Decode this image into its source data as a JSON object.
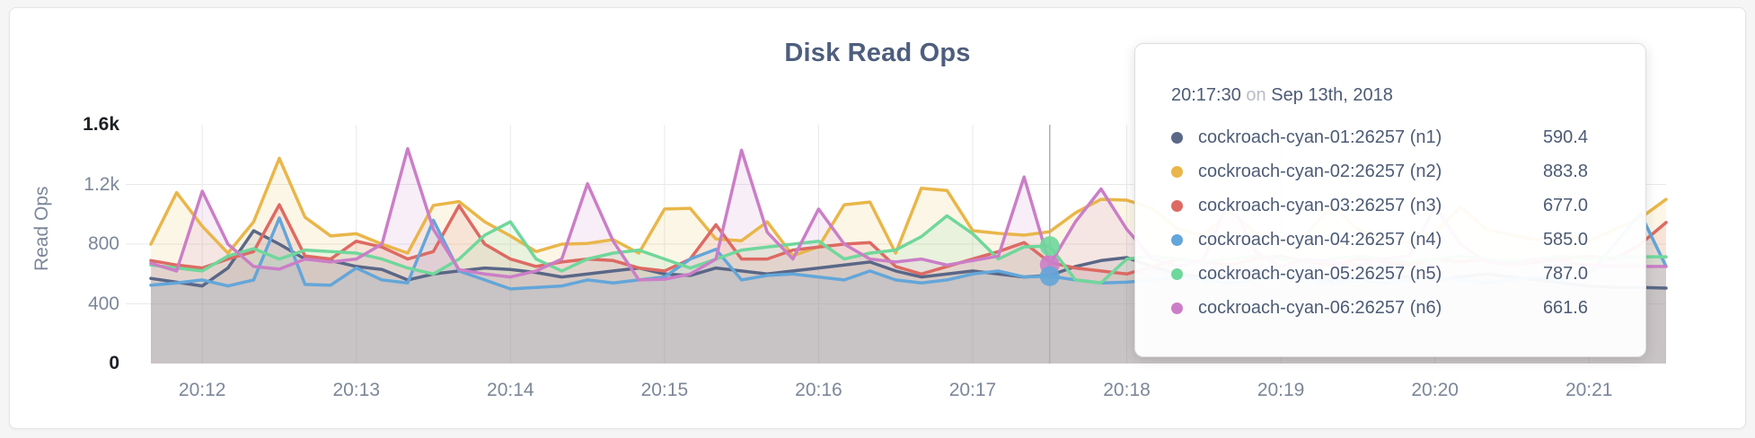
{
  "page": {
    "background_color": "#f5f5f6",
    "card_background": "#ffffff"
  },
  "chart": {
    "title": "Disk Read Ops",
    "y_axis_label": "Read Ops",
    "gridline_color": "#e9e9e9",
    "crosshair_color": "#b0b0b0"
  },
  "tooltip": {
    "time": "20:17:30",
    "connector": "on",
    "date": "Sep 13th, 2018",
    "rows": [
      {
        "name": "cockroach-cyan-01:26257 (n1)",
        "value": "590.4",
        "color": "#5a6787"
      },
      {
        "name": "cockroach-cyan-02:26257 (n2)",
        "value": "883.8",
        "color": "#e9b649"
      },
      {
        "name": "cockroach-cyan-03:26257 (n3)",
        "value": "677.0",
        "color": "#dd6a63"
      },
      {
        "name": "cockroach-cyan-04:26257 (n4)",
        "value": "585.0",
        "color": "#63a6d9"
      },
      {
        "name": "cockroach-cyan-05:26257 (n5)",
        "value": "787.0",
        "color": "#70d79b"
      },
      {
        "name": "cockroach-cyan-06:26257 (n6)",
        "value": "661.6",
        "color": "#cb7ec7"
      }
    ]
  },
  "chart_data": {
    "type": "line",
    "title": "Disk Read Ops",
    "ylabel": "Read Ops",
    "ylim": [
      0,
      1600
    ],
    "y_ticks": [
      {
        "label": "0",
        "value": 0,
        "strong": true
      },
      {
        "label": "400",
        "value": 400,
        "strong": false
      },
      {
        "label": "800",
        "value": 800,
        "strong": false
      },
      {
        "label": "1.2k",
        "value": 1200,
        "strong": false
      },
      {
        "label": "1.6k",
        "value": 1600,
        "strong": true
      }
    ],
    "y_gridline_values": [
      400,
      800,
      1200
    ],
    "x_start_time": "20:11:40",
    "x_interval_seconds": 10,
    "x_ticks": [
      {
        "label": "20:12",
        "index": 2
      },
      {
        "label": "20:13",
        "index": 8
      },
      {
        "label": "20:14",
        "index": 14
      },
      {
        "label": "20:15",
        "index": 20
      },
      {
        "label": "20:16",
        "index": 26
      },
      {
        "label": "20:17",
        "index": 32
      },
      {
        "label": "20:18",
        "index": 38
      },
      {
        "label": "20:19",
        "index": 44
      },
      {
        "label": "20:20",
        "index": 50
      },
      {
        "label": "20:21",
        "index": 56
      }
    ],
    "hover": {
      "index": 35,
      "time": "20:17:30",
      "crosshair": true,
      "dot_series_shorts": [
        "n6",
        "n5",
        "n4"
      ]
    },
    "series": [
      {
        "name": "cockroach-cyan-01:26257 (n1)",
        "short": "n1",
        "color": "#5a6787",
        "values": [
          570,
          545,
          520,
          640,
          890,
          800,
          700,
          690,
          650,
          630,
          560,
          600,
          620,
          640,
          630,
          610,
          580,
          600,
          620,
          640,
          600,
          590,
          640,
          620,
          600,
          620,
          640,
          660,
          680,
          620,
          580,
          600,
          620,
          600,
          580,
          590.4,
          650,
          690,
          710,
          650,
          600,
          580,
          600,
          620,
          600,
          580,
          560,
          580,
          600,
          580,
          560,
          580,
          600,
          580,
          560,
          540,
          520,
          510,
          510,
          505
        ]
      },
      {
        "name": "cockroach-cyan-02:26257 (n2)",
        "short": "n2",
        "color": "#e9b649",
        "values": [
          800,
          1145,
          920,
          740,
          950,
          1375,
          980,
          855,
          870,
          800,
          740,
          1060,
          1085,
          950,
          855,
          750,
          800,
          805,
          830,
          740,
          1035,
          1040,
          835,
          823,
          950,
          722,
          782,
          1064,
          1082,
          740,
          1175,
          1160,
          890,
          872,
          860,
          883.8,
          1010,
          1100,
          1095,
          1040,
          900,
          860,
          1020,
          880,
          820,
          870,
          1060,
          900,
          830,
          810,
          880,
          1050,
          900,
          860,
          830,
          870,
          820,
          900,
          975,
          1100
        ]
      },
      {
        "name": "cockroach-cyan-03:26257 (n3)",
        "short": "n3",
        "color": "#dd6a63",
        "values": [
          690,
          660,
          640,
          700,
          750,
          1064,
          720,
          700,
          820,
          780,
          700,
          750,
          1058,
          800,
          700,
          650,
          680,
          700,
          690,
          640,
          620,
          700,
          930,
          700,
          700,
          760,
          780,
          800,
          810,
          650,
          600,
          650,
          700,
          750,
          810,
          677,
          640,
          620,
          600,
          650,
          700,
          680,
          660,
          700,
          720,
          680,
          660,
          700,
          680,
          660,
          700,
          680,
          700,
          660,
          680,
          700,
          720,
          700,
          800,
          945
        ]
      },
      {
        "name": "cockroach-cyan-04:26257 (n4)",
        "short": "n4",
        "color": "#63a6d9",
        "values": [
          525,
          540,
          560,
          520,
          560,
          975,
          530,
          525,
          640,
          560,
          540,
          960,
          620,
          560,
          500,
          510,
          520,
          560,
          540,
          560,
          580,
          700,
          765,
          560,
          590,
          600,
          580,
          560,
          620,
          560,
          540,
          560,
          600,
          620,
          580,
          585,
          560,
          540,
          545,
          560,
          580,
          560,
          540,
          560,
          580,
          560,
          540,
          560,
          540,
          560,
          580,
          560,
          540,
          560,
          580,
          560,
          600,
          800,
          1005,
          650
        ]
      },
      {
        "name": "cockroach-cyan-05:26257 (n5)",
        "short": "n5",
        "color": "#70d79b",
        "values": [
          660,
          640,
          620,
          720,
          770,
          700,
          760,
          750,
          740,
          700,
          640,
          600,
          700,
          860,
          950,
          700,
          620,
          700,
          740,
          760,
          700,
          640,
          700,
          760,
          780,
          800,
          820,
          700,
          740,
          760,
          850,
          990,
          870,
          700,
          782,
          787,
          560,
          540,
          700,
          720,
          700,
          680,
          700,
          720,
          700,
          680,
          700,
          720,
          700,
          680,
          700,
          720,
          700,
          680,
          700,
          720,
          700,
          715,
          715,
          715
        ]
      },
      {
        "name": "cockroach-cyan-06:26257 (n6)",
        "short": "n6",
        "color": "#cb7ec7",
        "values": [
          672,
          620,
          1155,
          800,
          650,
          632,
          700,
          680,
          700,
          800,
          1440,
          900,
          630,
          600,
          580,
          620,
          700,
          1205,
          820,
          560,
          565,
          600,
          700,
          1430,
          880,
          700,
          1035,
          800,
          700,
          680,
          700,
          660,
          690,
          720,
          1250,
          661.6,
          950,
          1170,
          900,
          700,
          650,
          700,
          1100,
          750,
          650,
          700,
          680,
          660,
          700,
          720,
          1050,
          800,
          680,
          660,
          700,
          680,
          660,
          650,
          650,
          650
        ]
      }
    ]
  }
}
